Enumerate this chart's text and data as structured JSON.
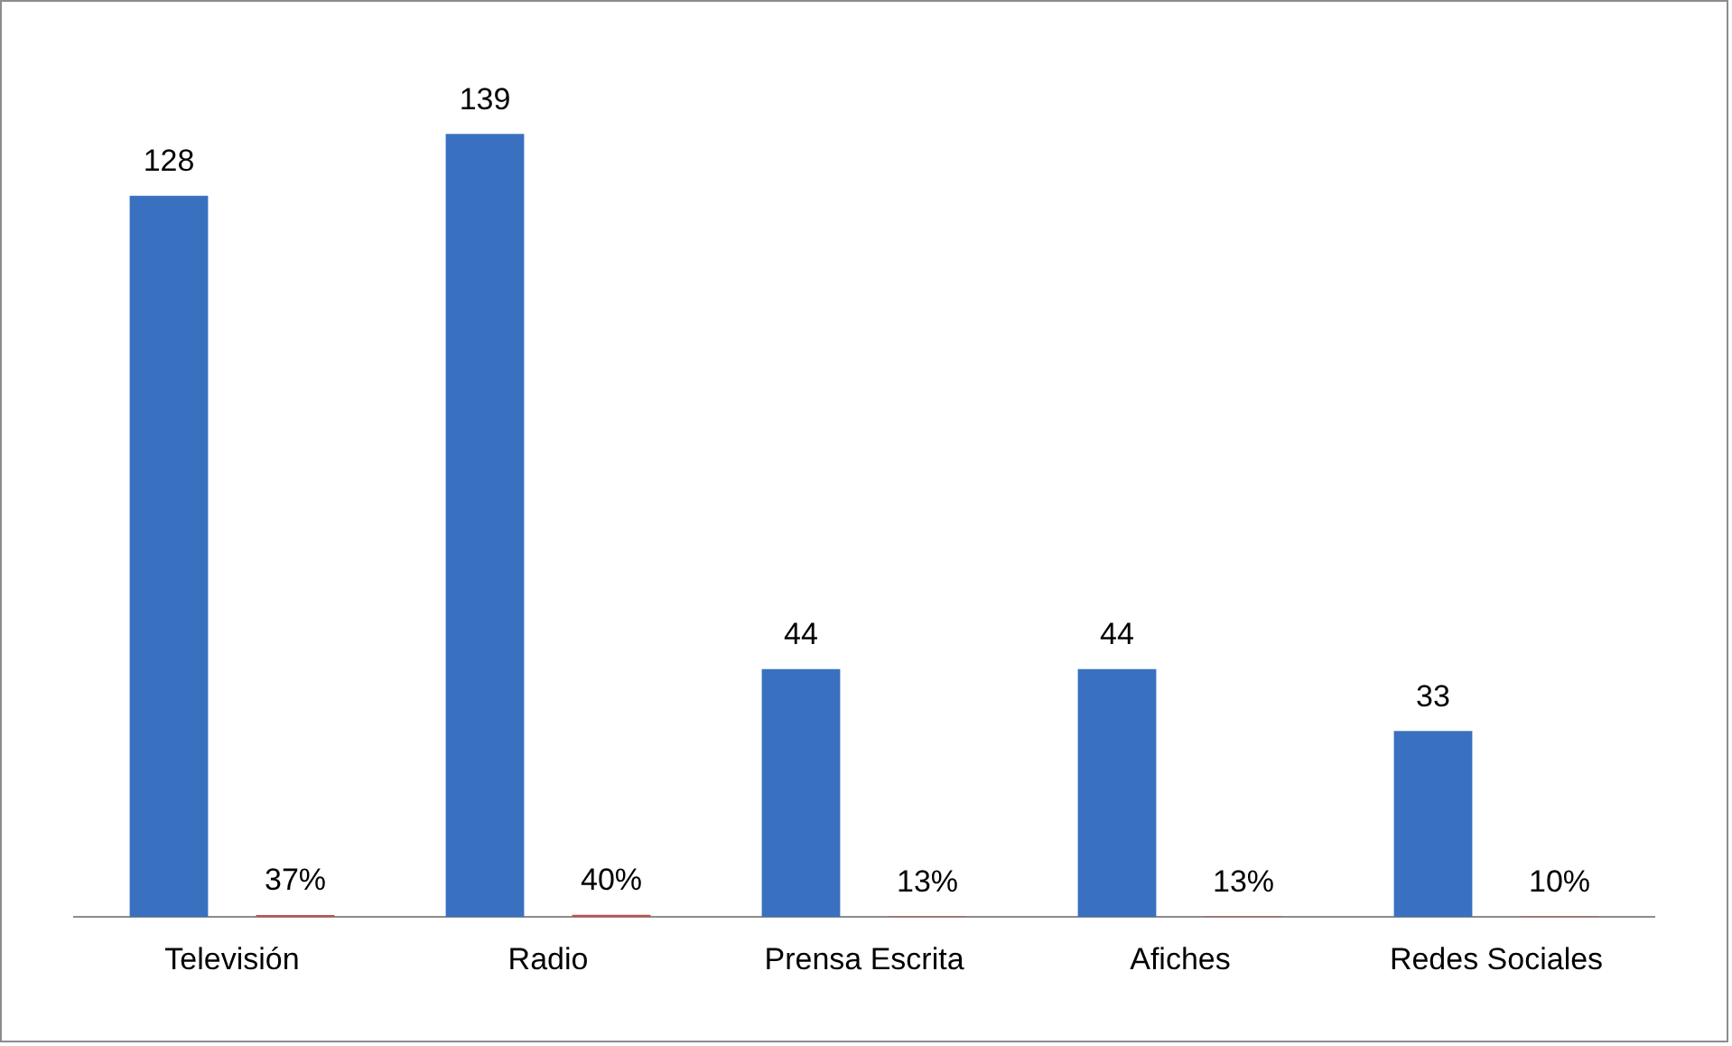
{
  "chart_data": {
    "type": "bar",
    "categories": [
      "Televisión",
      "Radio",
      "Prensa Escrita",
      "Afiches",
      "Redes Sociales"
    ],
    "series": [
      {
        "color": "#3a70c0",
        "values": [
          128,
          139,
          44,
          44,
          33
        ],
        "value_labels": [
          "128",
          "139",
          "44",
          "44",
          "33"
        ]
      },
      {
        "color": "#c0504d",
        "values": [
          0.37,
          0.4,
          0.13,
          0.13,
          0.1
        ],
        "value_labels": [
          "37%",
          "40%",
          "13%",
          "13%",
          "10%"
        ]
      }
    ],
    "tick_labels": "x"
  }
}
